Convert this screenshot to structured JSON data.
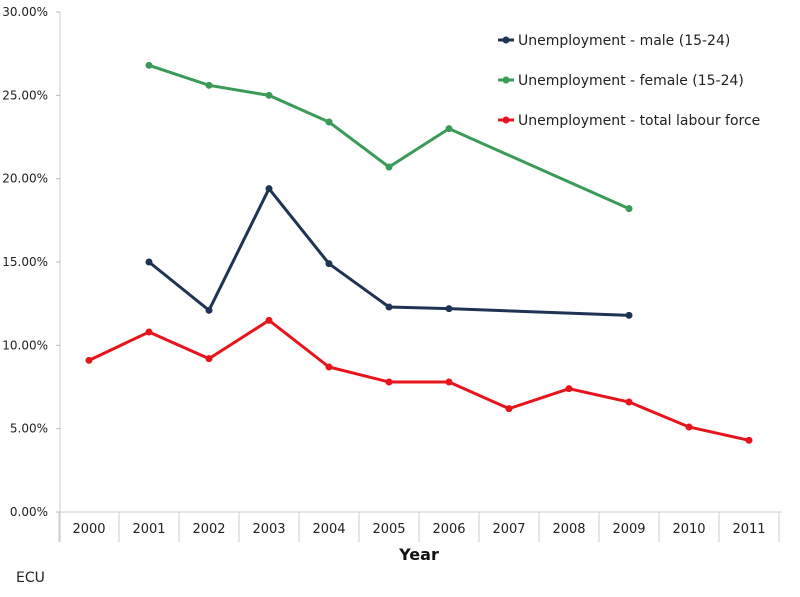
{
  "chart_data": {
    "type": "line",
    "title": "",
    "xlabel": "Year",
    "ylabel": "",
    "source": "ECU",
    "categories": [
      "2000",
      "2001",
      "2002",
      "2003",
      "2004",
      "2005",
      "2006",
      "2007",
      "2008",
      "2009",
      "2010",
      "2011"
    ],
    "ylim": [
      0,
      30
    ],
    "yticks": [
      "0.00%",
      "5.00%",
      "10.00%",
      "15.00%",
      "20.00%",
      "25.00%",
      "30.00%"
    ],
    "legend_position": "top-right",
    "series": [
      {
        "name": "Unemployment - male (15-24)",
        "color": "#1f3354",
        "values": [
          null,
          15.0,
          12.1,
          19.4,
          14.9,
          12.3,
          12.2,
          null,
          null,
          11.8,
          null,
          null
        ]
      },
      {
        "name": "Unemployment - female (15-24)",
        "color": "#3a9a58",
        "values": [
          null,
          26.8,
          25.6,
          25.0,
          23.4,
          20.7,
          23.0,
          null,
          null,
          18.2,
          null,
          null
        ]
      },
      {
        "name": "Unemployment - total labour force",
        "color": "#e8141c",
        "values": [
          9.1,
          10.8,
          9.2,
          11.5,
          8.7,
          7.8,
          7.8,
          6.2,
          7.4,
          6.6,
          5.1,
          4.3
        ]
      }
    ]
  }
}
